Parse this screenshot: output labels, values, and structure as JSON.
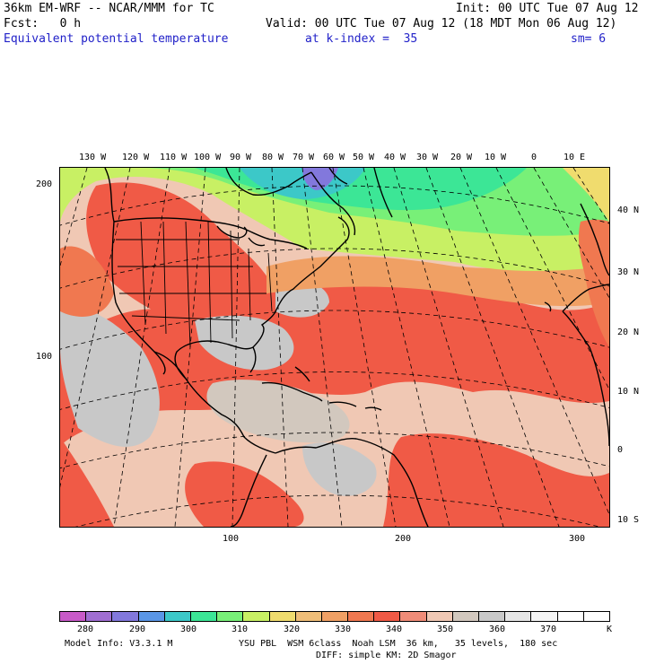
{
  "header": {
    "model": "36km EM-WRF -- NCAR/MMM for TC",
    "init": "Init: 00 UTC Tue 07 Aug 12",
    "fcst": "Fcst:   0 h",
    "valid": "Valid: 00 UTC Tue 07 Aug 12 (18 MDT Mon 06 Aug 12)",
    "field": "Equivalent potential temperature",
    "level": "at k-index =  35",
    "smoothing": "sm= 6"
  },
  "map": {
    "top_lon_labels": [
      "130 W",
      "120 W",
      "110 W",
      "100 W",
      "90 W",
      "80 W",
      "70 W",
      "60 W",
      "50 W",
      "40 W",
      "30 W",
      "20 W",
      "10 W",
      "0",
      "10 E"
    ],
    "right_lat_labels": [
      "40 N",
      "30 N",
      "20 N",
      "10 N",
      "0",
      "10 S"
    ],
    "left_grid_labels": [
      "200",
      "100"
    ],
    "bottom_grid_labels": [
      "100",
      "200",
      "300"
    ]
  },
  "colorbar": {
    "colors": [
      "#c85ac8",
      "#a06ed2",
      "#8278dc",
      "#5a96e6",
      "#3cc8c8",
      "#3ce696",
      "#78f078",
      "#c8f064",
      "#f0dc6e",
      "#f0be78",
      "#f0a064",
      "#f07850",
      "#f05a46",
      "#f08c78",
      "#f0c8b4",
      "#d2c8be",
      "#c8c8c8",
      "#e6e6e6",
      "#f5f5f5",
      "#ffffff",
      "#ffffff"
    ],
    "labels": [
      "280",
      "290",
      "300",
      "310",
      "320",
      "330",
      "340",
      "350",
      "360",
      "370"
    ],
    "units": "K"
  },
  "footer": {
    "model_info": "Model Info: V3.3.1 M",
    "physics": "YSU PBL  WSM 6class  Noah LSM  36 km,   35 levels,  180 sec",
    "diffusion": "DIFF: simple KM: 2D Smagor"
  }
}
